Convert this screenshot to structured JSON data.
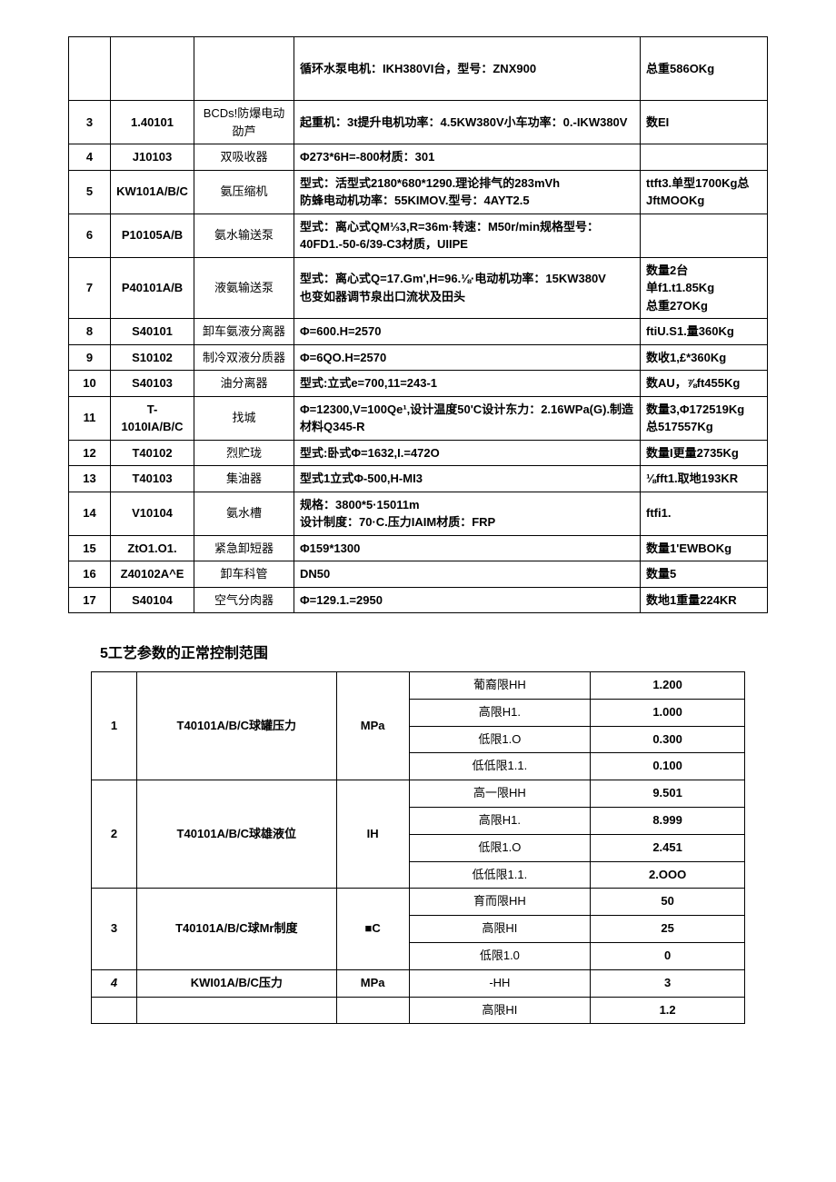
{
  "table1": {
    "rows": [
      {
        "idx": "",
        "code": "",
        "name": "",
        "spec": "循环水泵电机：IKH380VI台，型号：ZNX900",
        "remark": "总重586OKg"
      },
      {
        "idx": "3",
        "code": "1.40101",
        "name": "BCDs!防爆电动劭芦",
        "spec": "起重机：3t提升电机功率：4.5KW380V小车功率：0.-IKW380V",
        "remark": "数EI"
      },
      {
        "idx": "4",
        "code": "J10103",
        "name": "双吸收器",
        "spec": "Φ273*6H=-800材质：301",
        "remark": ""
      },
      {
        "idx": "5",
        "code": "KW101A/B/C",
        "name": "氨压缩机",
        "spec": "型式：活型式2180*680*1290.理论排气的283mVh\n防蜂电动机功率：55KIMOV.型号：4AYT2.5",
        "remark": "ttft3.单型1700Kg总JftMOOKg"
      },
      {
        "idx": "6",
        "code": "P10105A/B",
        "name": "氨水输送泵",
        "spec": "型式：离心式QM⅓3,R=36m·转速：M50r/min规格型号：40FD1.-50-6/39-C3材质，UIIPE",
        "remark": ""
      },
      {
        "idx": "7",
        "code": "P40101A/B",
        "name": "液氨输送泵",
        "spec": "型式：离心式Q=17.Gm',H=96.⅛·电动机功率：15KW380V\n也变如器调节泉出口流状及田头",
        "remark": "数量2台\n单f1.t1.85Kg\n总重27OKg"
      },
      {
        "idx": "8",
        "code": "S40101",
        "name": "卸车氨液分离器",
        "spec": "Φ=600.H=2570",
        "remark": "ftiU.S1.量360Kg"
      },
      {
        "idx": "9",
        "code": "S10102",
        "name": "制冷双液分质器",
        "spec": "Φ=6QO.H=2570",
        "remark": "数收1,£*360Kg"
      },
      {
        "idx": "10",
        "code": "S40103",
        "name": "油分离器",
        "spec": "型式:立式e=700,11=243-1",
        "remark": "数AU，⅞ft455Kg"
      },
      {
        "idx": "11",
        "code": "T-1010IA/B/C",
        "name": "找城",
        "spec": "Φ=12300,V=100Qe¹,设计温度50'C设计东力：2.16WPa(G).制造材料Q345-R",
        "remark": "数量3,Φ172519Kg\n总517557Kg"
      },
      {
        "idx": "12",
        "code": "T40102",
        "name": "烈贮珑",
        "spec": "型式:卧式Φ=1632,I.=472O",
        "remark": "数量I更量2735Kg"
      },
      {
        "idx": "13",
        "code": "T40103",
        "name": "集油器",
        "spec": "型式1立式Φ-500,H-MI3",
        "remark": "⅛fft1.取地193KR"
      },
      {
        "idx": "14",
        "code": "V10104",
        "name": "氨水槽",
        "spec": "规格：<t>3800*5·15011m\n设计制度：70·C.压力IAIM材质：FRP",
        "remark": "ftfi1."
      },
      {
        "idx": "15",
        "code": "ZtO1.O1.",
        "name": "紧急卸短器",
        "spec": "Φ159*1300",
        "remark": "数量1'EWBOKg"
      },
      {
        "idx": "16",
        "code": "Z40102A^E",
        "name": "卸车科管",
        "spec": "DN50",
        "remark": "数量5"
      },
      {
        "idx": "17",
        "code": "S40104",
        "name": "空气分肉器",
        "spec": "Φ=129.1.=2950",
        "remark": "数地1重量224KR"
      }
    ]
  },
  "section_title": "5工艺参数的正常控制范围",
  "table2": {
    "groups": [
      {
        "idx": "1",
        "name": "T40101A/B/C球罐压力",
        "unit": "MPa",
        "limits": [
          {
            "label": "葡裔限HH",
            "val": "1.200"
          },
          {
            "label": "高限H1.",
            "val": "1.000"
          },
          {
            "label": "低限1.O",
            "val": "0.300"
          },
          {
            "label": "低低限1.1.",
            "val": "0.100"
          }
        ]
      },
      {
        "idx": "2",
        "name": "T40101A/B/C球雄液位",
        "unit": "IH",
        "limits": [
          {
            "label": "高一限HH",
            "val": "9.501"
          },
          {
            "label": "高限H1.",
            "val": "8.999"
          },
          {
            "label": "低限1.O",
            "val": "2.451"
          },
          {
            "label": "低低限1.1.",
            "val": "2.OOO"
          }
        ]
      },
      {
        "idx": "3",
        "name": "T40101A/B/C球Mr制度",
        "unit": "■C",
        "limits": [
          {
            "label": "育而限HH",
            "val": "50"
          },
          {
            "label": "高限HI",
            "val": "25"
          },
          {
            "label": "低限1.0",
            "val": "0"
          }
        ]
      },
      {
        "idx": "4",
        "name": "KWI01A/B/C压力",
        "unit": "MPa",
        "italic": true,
        "limits": [
          {
            "label": "-HH",
            "val": "3"
          }
        ]
      },
      {
        "idx": "",
        "name": "",
        "unit": "",
        "limits": [
          {
            "label": "高限HI",
            "val": "1.2"
          }
        ]
      }
    ]
  }
}
